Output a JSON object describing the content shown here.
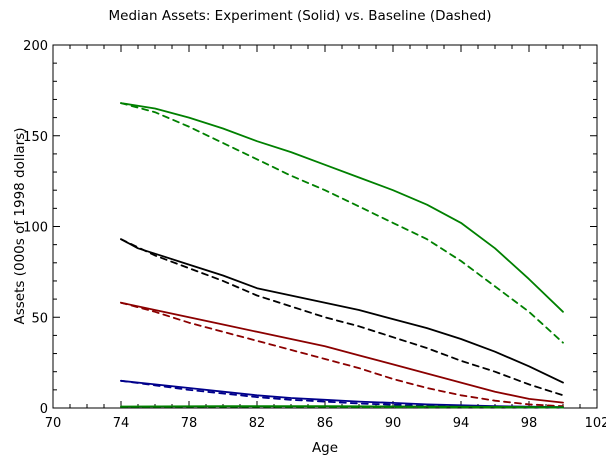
{
  "chart_data": {
    "type": "line",
    "title": "Median Assets:  Experiment (Solid) vs. Baseline (Dashed)",
    "xlabel": "Age",
    "ylabel": "Assets (000s of 1998 dollars)",
    "xlim": [
      70,
      102
    ],
    "ylim": [
      0,
      200
    ],
    "xticks": [
      "70",
      "74",
      "78",
      "82",
      "86",
      "90",
      "94",
      "98",
      "102"
    ],
    "yticks": [
      "0",
      "50",
      "100",
      "150",
      "200"
    ],
    "grid": false,
    "legend": "none",
    "series": [
      {
        "style": "solid",
        "color": "#008000",
        "x": [
          74,
          76,
          78,
          80,
          82,
          84,
          86,
          88,
          90,
          92,
          94,
          96,
          98,
          100
        ],
        "y": [
          168,
          165,
          160,
          154,
          147,
          141,
          134,
          127,
          120,
          112,
          102,
          88,
          71,
          53
        ]
      },
      {
        "style": "dashed",
        "color": "#008000",
        "x": [
          74,
          76,
          78,
          80,
          82,
          84,
          86,
          88,
          90,
          92,
          94,
          96,
          98,
          100
        ],
        "y": [
          168,
          163,
          155,
          146,
          137,
          128,
          120,
          111,
          102,
          93,
          81,
          67,
          53,
          36
        ]
      },
      {
        "style": "solid",
        "color": "#000000",
        "x": [
          74,
          75,
          76,
          78,
          80,
          82,
          84,
          86,
          88,
          90,
          92,
          94,
          96,
          98,
          100
        ],
        "y": [
          93,
          88,
          85,
          79,
          73,
          66,
          62,
          58,
          54,
          49,
          44,
          38,
          31,
          23,
          14
        ]
      },
      {
        "style": "dashed",
        "color": "#000000",
        "x": [
          74,
          76,
          78,
          80,
          82,
          84,
          86,
          88,
          90,
          92,
          94,
          96,
          98,
          100
        ],
        "y": [
          93,
          84,
          77,
          70,
          62,
          56,
          50,
          45,
          39,
          33,
          26,
          20,
          13,
          7
        ]
      },
      {
        "style": "solid",
        "color": "#8b0000",
        "x": [
          74,
          76,
          78,
          80,
          82,
          84,
          86,
          88,
          90,
          92,
          94,
          96,
          98,
          100
        ],
        "y": [
          58,
          54,
          50,
          46,
          42,
          38,
          34,
          29,
          24,
          19,
          14,
          9,
          5,
          3
        ]
      },
      {
        "style": "dashed",
        "color": "#8b0000",
        "x": [
          74,
          76,
          78,
          80,
          82,
          84,
          86,
          88,
          90,
          92,
          94,
          96,
          98,
          100
        ],
        "y": [
          58,
          53,
          47,
          42,
          37,
          32,
          27,
          22,
          16,
          11,
          7,
          4,
          2,
          1
        ]
      },
      {
        "style": "solid",
        "color": "#00008b",
        "x": [
          74,
          76,
          78,
          80,
          82,
          84,
          86,
          88,
          90,
          92,
          94,
          96,
          98,
          100
        ],
        "y": [
          15,
          13,
          11,
          9,
          7,
          5.5,
          4.5,
          3.5,
          2.8,
          2,
          1.5,
          1,
          0.7,
          0.5
        ]
      },
      {
        "style": "dashed",
        "color": "#00008b",
        "x": [
          74,
          76,
          78,
          80,
          82,
          84,
          86,
          88,
          90,
          92,
          94,
          96,
          98,
          100
        ],
        "y": [
          15,
          12.5,
          10,
          8,
          6,
          4.5,
          3.5,
          2.5,
          1.8,
          1.2,
          0.8,
          0.5,
          0.3,
          0.2
        ]
      },
      {
        "style": "solid",
        "color": "#008000",
        "x": [
          74,
          80,
          86,
          92,
          100
        ],
        "y": [
          0.8,
          1,
          1,
          0.8,
          0.5
        ]
      },
      {
        "style": "dashed",
        "color": "#008000",
        "x": [
          74,
          80,
          86,
          92,
          100
        ],
        "y": [
          0.6,
          0.7,
          0.6,
          0.4,
          0.2
        ]
      }
    ]
  }
}
